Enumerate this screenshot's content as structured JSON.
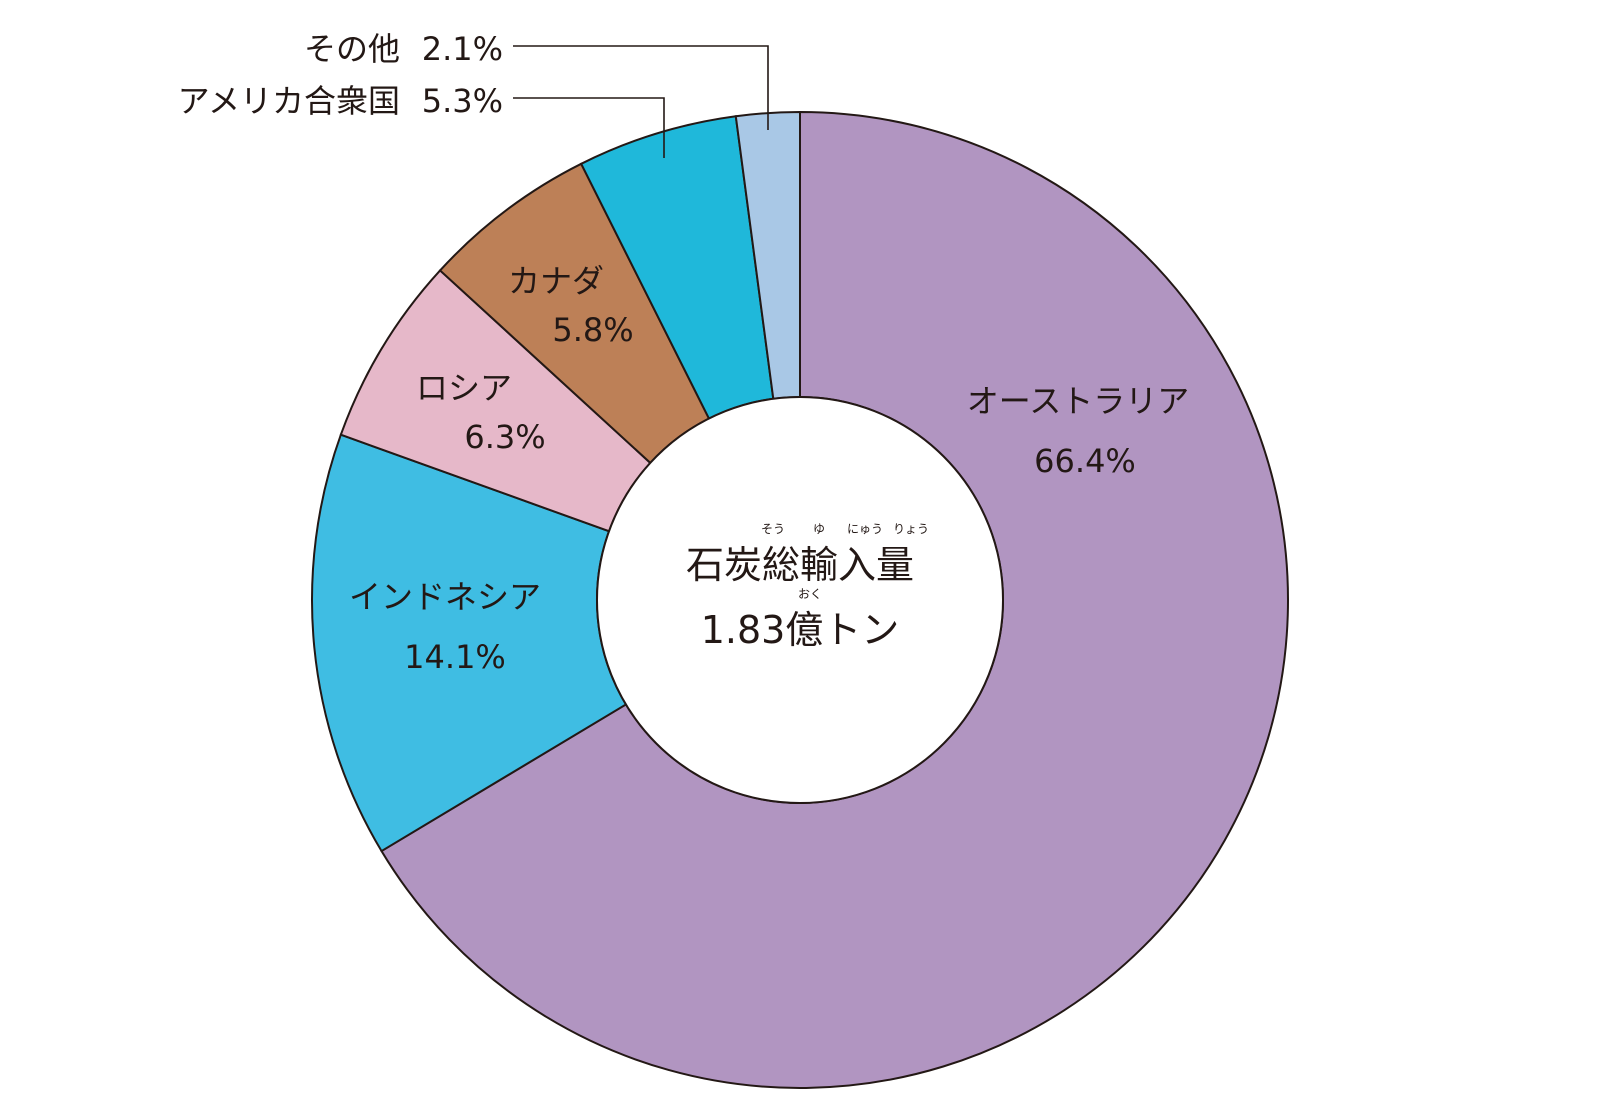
{
  "chart_data": {
    "type": "pie",
    "donut": true,
    "unit": "%",
    "center": {
      "title": "石炭総輸入量",
      "title_ruby": [
        "そう",
        "ゆ",
        "にゅう",
        "りょう"
      ],
      "value": "1.83億トン",
      "value_ruby": "おく"
    },
    "slices": [
      {
        "name": "オーストラリア",
        "value": 66.4,
        "value_label": "66.4%",
        "color": "#b195c1"
      },
      {
        "name": "インドネシア",
        "value": 14.1,
        "value_label": "14.1%",
        "color": "#3fbde3"
      },
      {
        "name": "ロシア",
        "value": 6.3,
        "value_label": "6.3%",
        "color": "#e6b8c9"
      },
      {
        "name": "カナダ",
        "value": 5.8,
        "value_label": "5.8%",
        "color": "#bd8057"
      },
      {
        "name": "アメリカ合衆国",
        "value": 5.3,
        "value_label": "5.3%",
        "color": "#1fb8da"
      },
      {
        "name": "その他",
        "value": 2.1,
        "value_label": "2.1%",
        "color": "#a9c8e6"
      }
    ]
  }
}
